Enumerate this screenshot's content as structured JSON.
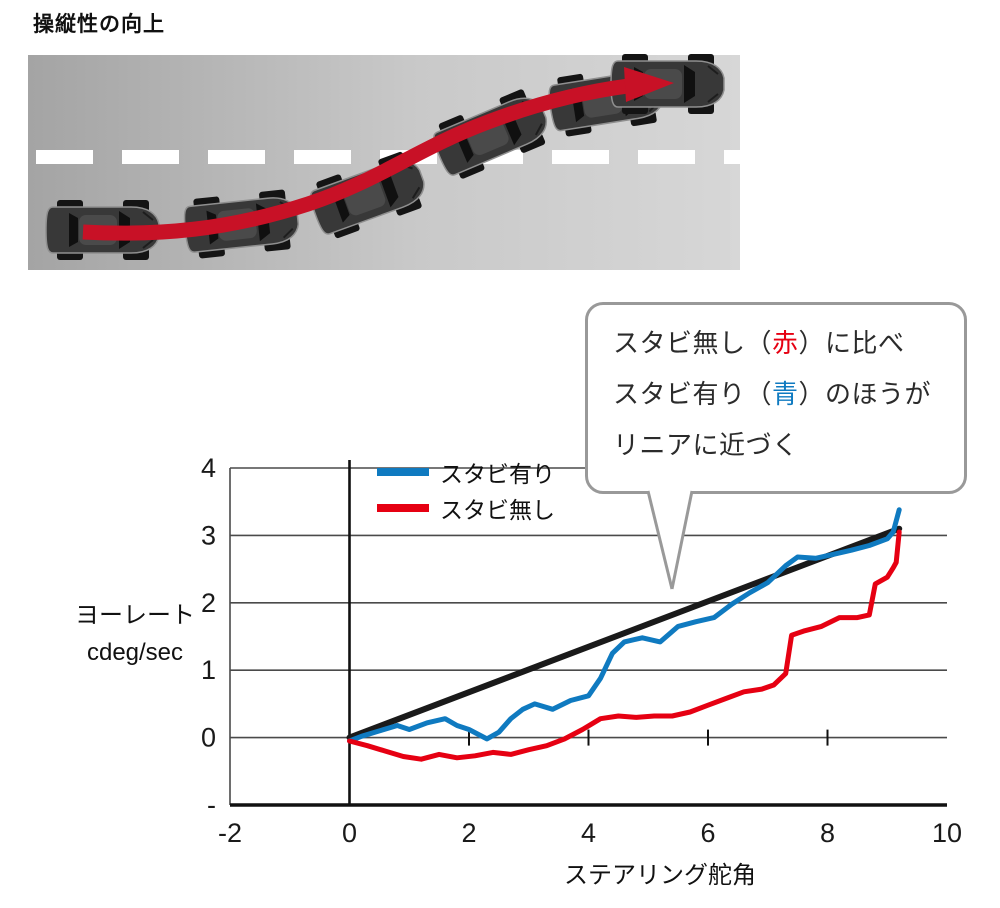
{
  "page": {
    "title": "操縦性の向上"
  },
  "illustration": {
    "name": "lane-change-diagram",
    "road_color_left": "#a6a6a6",
    "road_color_right": "#d6d6d6",
    "lane_marking_color": "#ffffff",
    "arrow_color": "#c81126",
    "car_count": 6
  },
  "callout": {
    "lines": [
      [
        {
          "t": "スタビ無し（"
        },
        {
          "t": "赤",
          "color": "#e60012"
        },
        {
          "t": "）に比べ"
        }
      ],
      [
        {
          "t": "スタビ有り（"
        },
        {
          "t": "青",
          "color": "#0f7ac0"
        },
        {
          "t": "）のほうが"
        }
      ],
      [
        {
          "t": "リニアに近づく"
        }
      ]
    ]
  },
  "chart_data": {
    "type": "line",
    "title": "",
    "xlabel": "ステアリング舵角",
    "ylabel_lines": [
      "ヨーレート",
      "cdeg/sec"
    ],
    "xlim": [
      -2,
      10
    ],
    "ylim": [
      -1,
      4
    ],
    "xticks": [
      -2,
      0,
      2,
      4,
      6,
      8,
      10
    ],
    "ytick_values": [
      4,
      3,
      2,
      1,
      0,
      -1
    ],
    "ytick_labels": [
      "4",
      "3",
      "2",
      "1",
      "0",
      "-"
    ],
    "zero_axis_ticks": [
      2,
      4,
      6,
      8
    ],
    "grid": "horizontal",
    "legend": {
      "position": "top-left-inside",
      "entries": [
        {
          "name": "スタビ有り",
          "color": "#0f7ac0"
        },
        {
          "name": "スタビ無し",
          "color": "#e60012"
        }
      ]
    },
    "series": [
      {
        "key": "linear-reference",
        "name": "リニア",
        "color": "#1a1a1a",
        "width": 6,
        "points": [
          [
            0,
            0
          ],
          [
            9.2,
            3.1
          ]
        ]
      },
      {
        "key": "with-stabilizer",
        "name": "スタビ有り",
        "color": "#0f7ac0",
        "width": 5,
        "points": [
          [
            0,
            -0.05
          ],
          [
            0.2,
            0.02
          ],
          [
            0.5,
            0.1
          ],
          [
            0.8,
            0.18
          ],
          [
            1.0,
            0.12
          ],
          [
            1.3,
            0.22
          ],
          [
            1.6,
            0.28
          ],
          [
            1.8,
            0.18
          ],
          [
            2.0,
            0.12
          ],
          [
            2.3,
            -0.02
          ],
          [
            2.5,
            0.08
          ],
          [
            2.7,
            0.28
          ],
          [
            2.9,
            0.42
          ],
          [
            3.1,
            0.5
          ],
          [
            3.4,
            0.42
          ],
          [
            3.7,
            0.55
          ],
          [
            4.0,
            0.62
          ],
          [
            4.2,
            0.88
          ],
          [
            4.4,
            1.25
          ],
          [
            4.6,
            1.42
          ],
          [
            4.9,
            1.48
          ],
          [
            5.2,
            1.42
          ],
          [
            5.5,
            1.65
          ],
          [
            5.8,
            1.72
          ],
          [
            6.1,
            1.78
          ],
          [
            6.4,
            1.98
          ],
          [
            6.7,
            2.15
          ],
          [
            7.0,
            2.3
          ],
          [
            7.3,
            2.55
          ],
          [
            7.5,
            2.68
          ],
          [
            7.8,
            2.66
          ],
          [
            8.1,
            2.72
          ],
          [
            8.4,
            2.78
          ],
          [
            8.7,
            2.85
          ],
          [
            9.0,
            2.95
          ],
          [
            9.1,
            3.05
          ],
          [
            9.2,
            3.38
          ]
        ]
      },
      {
        "key": "without-stabilizer",
        "name": "スタビ無し",
        "color": "#e60012",
        "width": 5,
        "points": [
          [
            0,
            -0.05
          ],
          [
            0.3,
            -0.12
          ],
          [
            0.6,
            -0.2
          ],
          [
            0.9,
            -0.28
          ],
          [
            1.2,
            -0.32
          ],
          [
            1.5,
            -0.25
          ],
          [
            1.8,
            -0.3
          ],
          [
            2.1,
            -0.27
          ],
          [
            2.4,
            -0.22
          ],
          [
            2.7,
            -0.25
          ],
          [
            3.0,
            -0.18
          ],
          [
            3.3,
            -0.12
          ],
          [
            3.6,
            -0.02
          ],
          [
            3.9,
            0.12
          ],
          [
            4.2,
            0.28
          ],
          [
            4.5,
            0.32
          ],
          [
            4.8,
            0.3
          ],
          [
            5.1,
            0.32
          ],
          [
            5.4,
            0.32
          ],
          [
            5.7,
            0.38
          ],
          [
            6.0,
            0.48
          ],
          [
            6.3,
            0.58
          ],
          [
            6.6,
            0.68
          ],
          [
            6.9,
            0.72
          ],
          [
            7.1,
            0.78
          ],
          [
            7.3,
            0.95
          ],
          [
            7.4,
            1.52
          ],
          [
            7.6,
            1.58
          ],
          [
            7.9,
            1.65
          ],
          [
            8.2,
            1.78
          ],
          [
            8.5,
            1.78
          ],
          [
            8.7,
            1.82
          ],
          [
            8.8,
            2.28
          ],
          [
            9.0,
            2.38
          ],
          [
            9.1,
            2.52
          ],
          [
            9.15,
            2.6
          ],
          [
            9.2,
            3.05
          ]
        ]
      }
    ]
  }
}
